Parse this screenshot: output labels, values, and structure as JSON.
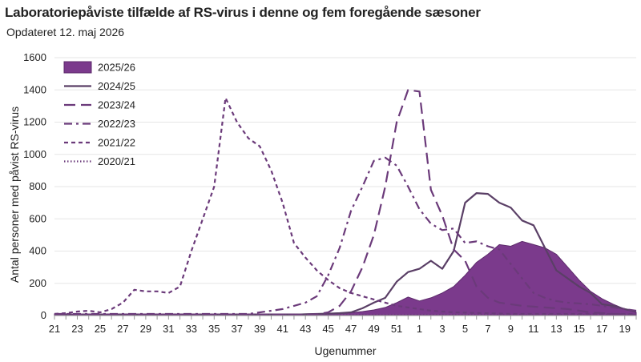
{
  "chart_data": {
    "type": "line",
    "title": "Laboratoriepåviste tilfælde af RS-virus i denne og fem foregående sæsoner",
    "subtitle": "Opdateret 12. maj 2026",
    "xlabel": "Ugenummer",
    "ylabel": "Antal personer med påvist RS-virus",
    "ylim": [
      0,
      1600
    ],
    "yticks": [
      0,
      200,
      400,
      600,
      800,
      1000,
      1200,
      1400,
      1600
    ],
    "grid": "horizontal",
    "legend": "top-left",
    "categories": [
      "21",
      "22",
      "23",
      "24",
      "25",
      "26",
      "27",
      "28",
      "29",
      "30",
      "31",
      "32",
      "33",
      "34",
      "35",
      "36",
      "37",
      "38",
      "39",
      "40",
      "41",
      "42",
      "43",
      "44",
      "45",
      "46",
      "47",
      "48",
      "49",
      "50",
      "51",
      "52",
      "1",
      "2",
      "3",
      "4",
      "5",
      "6",
      "7",
      "8",
      "9",
      "10",
      "11",
      "12",
      "13",
      "14",
      "15",
      "16",
      "17",
      "18",
      "19",
      "20"
    ],
    "xtick_labels": [
      "21",
      "23",
      "25",
      "27",
      "29",
      "31",
      "33",
      "35",
      "37",
      "39",
      "41",
      "43",
      "45",
      "47",
      "49",
      "51",
      "1",
      "3",
      "5",
      "7",
      "9",
      "11",
      "13",
      "15",
      "17",
      "19"
    ],
    "series": [
      {
        "name": "2025/26",
        "style": "area",
        "color": "#7b3a8c",
        "values": [
          10,
          10,
          10,
          10,
          10,
          10,
          10,
          10,
          10,
          10,
          10,
          10,
          10,
          10,
          10,
          10,
          10,
          10,
          10,
          10,
          10,
          10,
          10,
          12,
          14,
          15,
          18,
          25,
          35,
          50,
          80,
          115,
          90,
          110,
          140,
          180,
          250,
          330,
          380,
          440,
          430,
          460,
          440,
          420,
          380,
          300,
          220,
          150,
          105,
          70,
          40,
          20
        ]
      },
      {
        "name": "2024/25",
        "style": "solid",
        "color": "#5a3f66",
        "values": [
          5,
          5,
          5,
          5,
          5,
          5,
          5,
          5,
          5,
          5,
          5,
          5,
          5,
          5,
          5,
          5,
          5,
          5,
          5,
          5,
          5,
          5,
          8,
          10,
          12,
          15,
          20,
          45,
          80,
          110,
          210,
          270,
          290,
          340,
          290,
          400,
          700,
          760,
          755,
          700,
          670,
          590,
          560,
          420,
          280,
          230,
          180,
          140,
          70,
          60,
          40,
          25
        ]
      },
      {
        "name": "2023/24",
        "style": "longdash",
        "color": "#6b3a7a",
        "values": [
          5,
          5,
          5,
          5,
          5,
          5,
          5,
          5,
          5,
          5,
          5,
          5,
          5,
          5,
          5,
          5,
          5,
          5,
          5,
          5,
          5,
          5,
          5,
          8,
          20,
          60,
          150,
          300,
          500,
          800,
          1200,
          1400,
          1390,
          780,
          620,
          410,
          340,
          180,
          110,
          80,
          70,
          60,
          55,
          50,
          45,
          40,
          30,
          20,
          15,
          10,
          8,
          5
        ]
      },
      {
        "name": "2022/23",
        "style": "dashdot",
        "color": "#6b3a7a",
        "values": [
          10,
          10,
          10,
          10,
          10,
          10,
          10,
          10,
          10,
          10,
          10,
          10,
          10,
          10,
          10,
          10,
          10,
          10,
          20,
          30,
          40,
          60,
          80,
          120,
          250,
          420,
          650,
          800,
          960,
          980,
          930,
          800,
          660,
          570,
          530,
          540,
          450,
          460,
          430,
          410,
          320,
          230,
          140,
          110,
          90,
          80,
          75,
          70,
          60,
          50,
          40,
          30
        ]
      },
      {
        "name": "2021/22",
        "style": "shortdash",
        "color": "#6b3a7a",
        "values": [
          10,
          15,
          25,
          30,
          20,
          40,
          80,
          160,
          150,
          150,
          140,
          180,
          400,
          600,
          800,
          1350,
          1200,
          1100,
          1050,
          900,
          700,
          450,
          360,
          280,
          220,
          170,
          140,
          120,
          100,
          80,
          60,
          50,
          40,
          30,
          25,
          20,
          18,
          16,
          14,
          12,
          10,
          10,
          10,
          10,
          10,
          10,
          10,
          10,
          10,
          10,
          10,
          10
        ]
      },
      {
        "name": "2020/21",
        "style": "dotted",
        "color": "#6b3a7a",
        "values": [
          5,
          5,
          5,
          5,
          5,
          5,
          5,
          5,
          5,
          5,
          5,
          5,
          5,
          5,
          5,
          5,
          5,
          5,
          5,
          5,
          5,
          5,
          5,
          5,
          5,
          5,
          5,
          5,
          5,
          5,
          5,
          5,
          5,
          5,
          5,
          5,
          5,
          5,
          5,
          5,
          5,
          5,
          5,
          5,
          5,
          5,
          5,
          5,
          5,
          5,
          5,
          5
        ]
      }
    ]
  }
}
